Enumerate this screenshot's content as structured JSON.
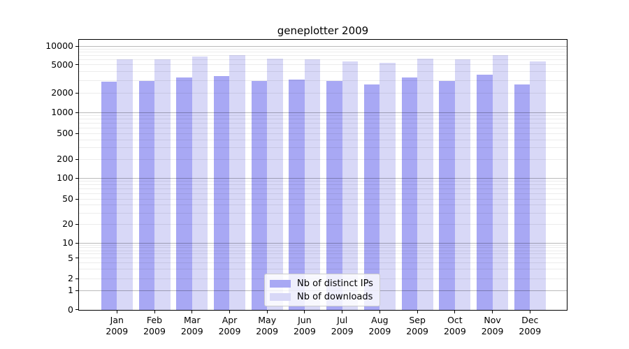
{
  "chart_data": {
    "type": "bar",
    "title": "geneplotter 2009",
    "x_categories": [
      "Jan",
      "Feb",
      "Mar",
      "Apr",
      "May",
      "Jun",
      "Jul",
      "Aug",
      "Sep",
      "Oct",
      "Nov",
      "Dec"
    ],
    "x_year": "2009",
    "series": [
      {
        "name": "Nb of distinct IPs",
        "color": "#a8a8f4",
        "values": [
          2880,
          2920,
          3280,
          3470,
          2940,
          3090,
          2930,
          2640,
          3280,
          2920,
          3570,
          2600
        ]
      },
      {
        "name": "Nb of downloads",
        "color": "#d8d8f7",
        "values": [
          6130,
          6130,
          6740,
          7190,
          6320,
          6130,
          5660,
          5310,
          6280,
          6090,
          7070,
          5570
        ]
      }
    ],
    "y_ticks": [
      0,
      1,
      2,
      5,
      10,
      20,
      50,
      100,
      200,
      500,
      1000,
      2000,
      5000,
      10000
    ],
    "y_scale": "log-like with zero baseline",
    "ylim": [
      0,
      12000
    ],
    "grid": "horizontal major and minor gridlines",
    "legend_position": "lower center"
  }
}
